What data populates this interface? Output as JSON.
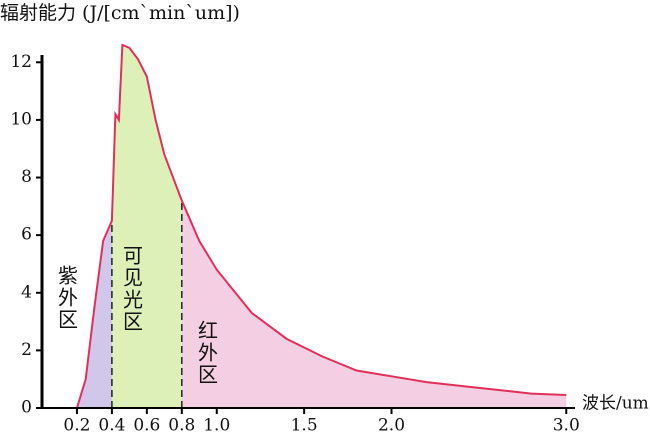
{
  "chart_data": {
    "type": "area",
    "title": "辐射能力 (J/[cm`min`um])",
    "x_label": "波长/um",
    "x": [
      0.2,
      0.25,
      0.3,
      0.35,
      0.4,
      0.42,
      0.44,
      0.46,
      0.5,
      0.55,
      0.6,
      0.65,
      0.7,
      0.8,
      0.9,
      1.0,
      1.2,
      1.4,
      1.6,
      1.8,
      2.0,
      2.2,
      2.5,
      2.8,
      3.0
    ],
    "values": [
      0,
      1,
      3.5,
      5.8,
      6.5,
      10.2,
      10,
      12.6,
      12.5,
      12.1,
      11.5,
      10,
      8.8,
      7.2,
      5.8,
      4.8,
      3.3,
      2.4,
      1.8,
      1.3,
      1.1,
      0.9,
      0.7,
      0.5,
      0.45
    ],
    "color": "#e0305a",
    "bands": [
      {
        "name": "紫外区",
        "range": [
          0.2,
          0.4
        ],
        "color": "#c9bde8"
      },
      {
        "name": "可见光区",
        "range": [
          0.4,
          0.8
        ],
        "color": "#d6edaa"
      },
      {
        "name": "红外区",
        "range": [
          0.8,
          3.0
        ],
        "color": "#f2c6de"
      }
    ],
    "xlim": [
      0,
      3.05
    ],
    "ylim": [
      0,
      12.6
    ],
    "xticks": [
      0.2,
      0.4,
      0.6,
      0.8,
      {
        "value": 1,
        "label": "1.0"
      },
      1.5,
      {
        "value": 2,
        "label": "2.0"
      },
      {
        "value": 3,
        "label": "3.0"
      }
    ],
    "yticks": [
      0,
      2,
      4,
      6,
      8,
      10,
      12
    ]
  }
}
